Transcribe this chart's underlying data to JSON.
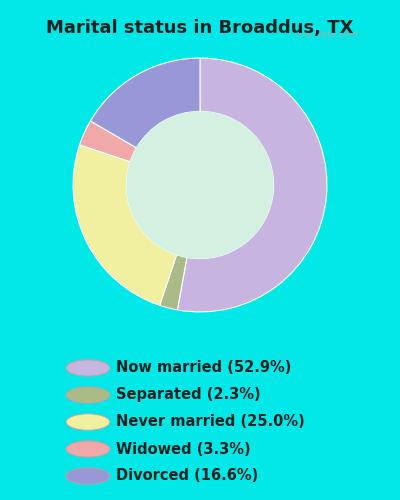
{
  "title": "Marital status in Broaddus, TX",
  "slices": [
    {
      "label": "Now married (52.9%)",
      "value": 52.9,
      "color": "#c8b4e0"
    },
    {
      "label": "Separated (2.3%)",
      "value": 2.3,
      "color": "#aabb88"
    },
    {
      "label": "Never married (25.0%)",
      "value": 25.0,
      "color": "#f0f0a0"
    },
    {
      "label": "Widowed (3.3%)",
      "value": 3.3,
      "color": "#f0a8a8"
    },
    {
      "label": "Divorced (16.6%)",
      "value": 16.6,
      "color": "#9898d8"
    }
  ],
  "background_color_outer": "#00e8e8",
  "background_color_chart": "#d4f0e0",
  "title_fontsize": 13,
  "legend_fontsize": 10.5,
  "watermark": "City-Data.com"
}
